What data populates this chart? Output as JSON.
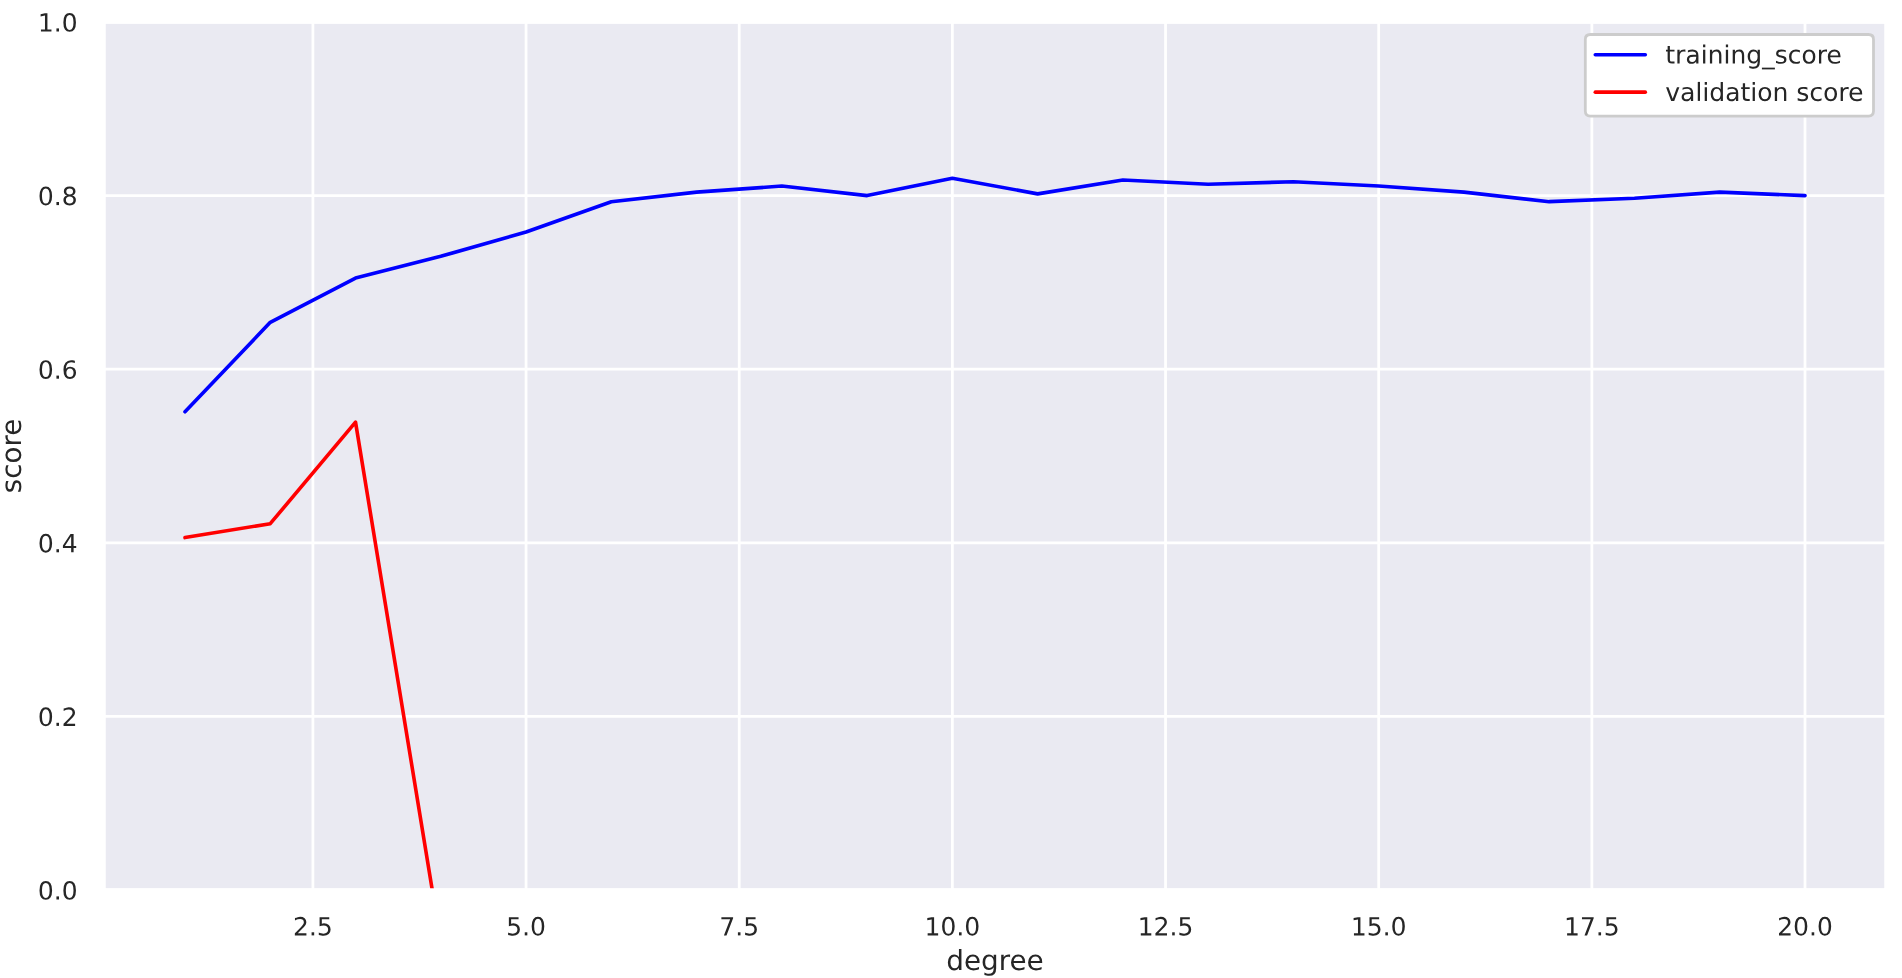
{
  "chart_data": {
    "type": "line",
    "xlabel": "degree",
    "ylabel": "score",
    "x": [
      1,
      2,
      3,
      4,
      5,
      6,
      7,
      8,
      9,
      10,
      11,
      12,
      13,
      14,
      15,
      16,
      17,
      18,
      19,
      20
    ],
    "series": [
      {
        "name": "training_score",
        "color": "#0000ff",
        "values": [
          0.551,
          0.654,
          0.705,
          0.73,
          0.758,
          0.793,
          0.804,
          0.811,
          0.8,
          0.82,
          0.802,
          0.818,
          0.813,
          0.816,
          0.811,
          0.804,
          0.793,
          0.797,
          0.804,
          0.8
        ]
      },
      {
        "name": "validation score",
        "color": "#ff0000",
        "x": [
          1,
          2,
          3,
          3.9
        ],
        "values": [
          0.406,
          0.422,
          0.539,
          0.0
        ]
      }
    ],
    "xlim": [
      0.05,
      20.95
    ],
    "xticks": [
      {
        "value": 2.5,
        "label": "2.5"
      },
      {
        "value": 5,
        "label": "5.0"
      },
      {
        "value": 7.5,
        "label": "7.5"
      },
      {
        "value": 10,
        "label": "10.0"
      },
      {
        "value": 12.5,
        "label": "12.5"
      },
      {
        "value": 15,
        "label": "15.0"
      },
      {
        "value": 17.5,
        "label": "17.5"
      },
      {
        "value": 20,
        "label": "20.0"
      }
    ],
    "ylim": [
      0,
      1
    ],
    "yticks": [
      {
        "value": 0,
        "label": "0.0"
      },
      {
        "value": 0.2,
        "label": "0.2"
      },
      {
        "value": 0.4,
        "label": "0.4"
      },
      {
        "value": 0.6,
        "label": "0.6"
      },
      {
        "value": 0.8,
        "label": "0.8"
      },
      {
        "value": 1,
        "label": "1.0"
      }
    ],
    "grid": true,
    "legend": "top right",
    "line_style": "solid",
    "marker": "none"
  }
}
